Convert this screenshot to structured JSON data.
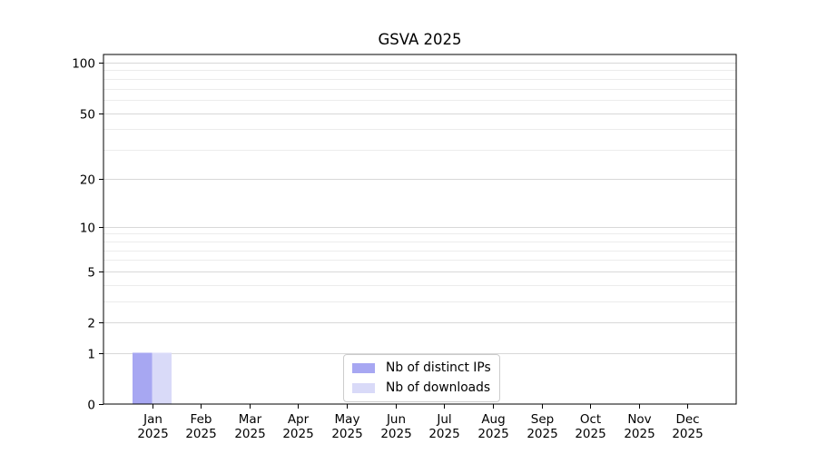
{
  "chart_data": {
    "type": "bar",
    "title": "GSVA 2025",
    "x_categories": [
      {
        "month": "Jan",
        "year": "2025"
      },
      {
        "month": "Feb",
        "year": "2025"
      },
      {
        "month": "Mar",
        "year": "2025"
      },
      {
        "month": "Apr",
        "year": "2025"
      },
      {
        "month": "May",
        "year": "2025"
      },
      {
        "month": "Jun",
        "year": "2025"
      },
      {
        "month": "Jul",
        "year": "2025"
      },
      {
        "month": "Aug",
        "year": "2025"
      },
      {
        "month": "Sep",
        "year": "2025"
      },
      {
        "month": "Oct",
        "year": "2025"
      },
      {
        "month": "Nov",
        "year": "2025"
      },
      {
        "month": "Dec",
        "year": "2025"
      }
    ],
    "series": [
      {
        "name": "Nb of distinct IPs",
        "color": "#a7a7f2",
        "values": [
          1,
          0,
          0,
          0,
          0,
          0,
          0,
          0,
          0,
          0,
          0,
          0
        ]
      },
      {
        "name": "Nb of downloads",
        "color": "#d9daf8",
        "values": [
          1,
          0,
          0,
          0,
          0,
          0,
          0,
          0,
          0,
          0,
          0,
          0
        ]
      }
    ],
    "y_axis": {
      "scale": "log10(1+y)",
      "range": [
        0,
        100
      ],
      "major_ticks": [
        0,
        1,
        2,
        5,
        10,
        20,
        50,
        100
      ],
      "minor_gridlines": [
        3,
        4,
        6,
        7,
        8,
        9,
        30,
        40,
        60,
        70,
        80,
        90
      ]
    },
    "grid": true,
    "legend_position": "lower center"
  },
  "colors": {
    "grid_major": "#d8d8d8",
    "grid_minor": "#ececec",
    "spine": "#000000",
    "tick": "#000000",
    "text": "#000000",
    "legend_border": "#cccccc",
    "background": "#ffffff"
  }
}
